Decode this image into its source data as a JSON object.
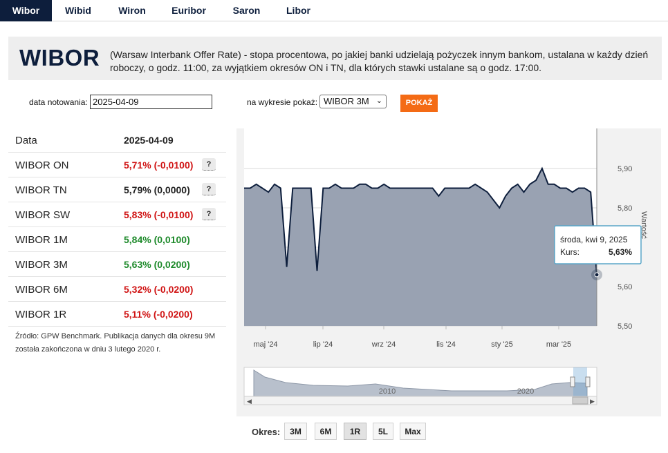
{
  "tabs": [
    {
      "label": "Wibor",
      "active": true
    },
    {
      "label": "Wibid",
      "active": false
    },
    {
      "label": "Wiron",
      "active": false
    },
    {
      "label": "Euribor",
      "active": false
    },
    {
      "label": "Saron",
      "active": false
    },
    {
      "label": "Libor",
      "active": false
    }
  ],
  "banner": {
    "title": "WIBOR",
    "description": "(Warsaw Interbank Offer Rate) - stopa procentowa, po jakiej banki udzielają pożyczek innym bankom, ustalana w każdy dzień roboczy, o godz. 11:00, za wyjątkiem okresów ON i TN, dla których stawki ustalane są o godz. 17:00."
  },
  "form": {
    "date_label": "data notowania:",
    "date_value": "2025-04-09",
    "chart_label": "na wykresie pokaż:",
    "chart_select": "WIBOR 3M",
    "show_button": "POKAŻ"
  },
  "rates": {
    "header_label": "Data",
    "header_date": "2025-04-09",
    "rows": [
      {
        "name": "WIBOR ON",
        "value": "5,71% (-0,0100)",
        "trend": "down",
        "help": "?"
      },
      {
        "name": "WIBOR TN",
        "value": "5,79% (0,0000)",
        "trend": "flat",
        "help": "?"
      },
      {
        "name": "WIBOR SW",
        "value": "5,83% (-0,0100)",
        "trend": "down",
        "help": "?"
      },
      {
        "name": "WIBOR 1M",
        "value": "5,84% (0,0100)",
        "trend": "up"
      },
      {
        "name": "WIBOR 3M",
        "value": "5,63% (0,0200)",
        "trend": "up"
      },
      {
        "name": "WIBOR 6M",
        "value": "5,32% (-0,0200)",
        "trend": "down"
      },
      {
        "name": "WIBOR 1R",
        "value": "5,11% (-0,0200)",
        "trend": "down"
      }
    ],
    "note": "Źródło: GPW Benchmark. Publikacja danych dla okresu 9M została zakończona w dniu 3 lutego 2020 r."
  },
  "colors": {
    "brand": "#0d1e3c",
    "accent": "#f46b15",
    "down": "#d01414",
    "up": "#1e8a2b",
    "area_fill": "#99a2b2",
    "line": "#0d1e3c"
  },
  "chart_data": {
    "type": "area",
    "series": [
      {
        "name": "WIBOR 3M",
        "values": [
          5.85,
          5.85,
          5.86,
          5.85,
          5.84,
          5.86,
          5.85,
          5.65,
          5.85,
          5.85,
          5.85,
          5.85,
          5.64,
          5.85,
          5.85,
          5.86,
          5.85,
          5.85,
          5.85,
          5.86,
          5.86,
          5.85,
          5.85,
          5.86,
          5.85,
          5.85,
          5.85,
          5.85,
          5.85,
          5.85,
          5.85,
          5.85,
          5.83,
          5.85,
          5.85,
          5.85,
          5.85,
          5.85,
          5.86,
          5.85,
          5.84,
          5.82,
          5.8,
          5.83,
          5.85,
          5.86,
          5.84,
          5.86,
          5.87,
          5.9,
          5.86,
          5.86,
          5.85,
          5.85,
          5.84,
          5.85,
          5.85,
          5.84,
          5.63
        ]
      }
    ],
    "x_ticks": [
      "maj '24",
      "lip '24",
      "wrz '24",
      "lis '24",
      "sty '25",
      "mar '25"
    ],
    "y_ticks": [
      "5,90",
      "5,80",
      "5,70",
      "5,60",
      "5,50"
    ],
    "ylim": [
      5.5,
      5.9
    ],
    "y_axis_label": "Wartość",
    "grid": true,
    "tooltip": {
      "date": "środa, kwi 9, 2025",
      "label": "Kurs:",
      "value": "5,63%"
    },
    "navigator_labels": [
      "2010",
      "2020"
    ]
  },
  "periods": {
    "label": "Okres:",
    "buttons": [
      {
        "label": "3M",
        "active": false
      },
      {
        "label": "6M",
        "active": false
      },
      {
        "label": "1R",
        "active": true
      },
      {
        "label": "5L",
        "active": false
      },
      {
        "label": "Max",
        "active": false
      }
    ]
  }
}
